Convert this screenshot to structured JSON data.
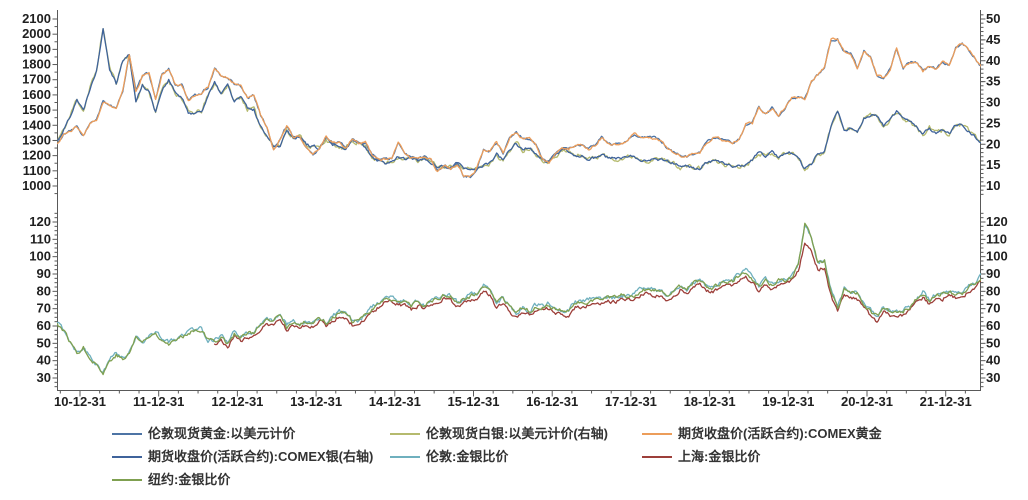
{
  "legend": {
    "items": [
      {
        "label": "伦敦现货黄金:以美元计价",
        "series": "london_gold"
      },
      {
        "label": "伦敦现货白银:以美元计价(右轴)",
        "series": "london_silver"
      },
      {
        "label": "期货收盘价(活跃合约):COMEX黄金",
        "series": "comex_gold"
      },
      {
        "label": "期货收盘价(活跃合约):COMEX银(右轴)",
        "series": "comex_silver"
      },
      {
        "label": "伦敦:金银比价",
        "series": "london_ratio"
      },
      {
        "label": "上海:金银比价",
        "series": "shanghai_ratio"
      },
      {
        "label": "纽约:金银比价",
        "series": "ny_ratio"
      }
    ]
  },
  "chart_data": {
    "type": "line",
    "title": "",
    "grid": false,
    "legend_position": "bottom",
    "x_axis": {
      "labels": [
        "10-12-31",
        "11-12-31",
        "12-12-31",
        "13-12-31",
        "14-12-31",
        "15-12-31",
        "16-12-31",
        "17-12-31",
        "18-12-31",
        "19-12-31",
        "20-12-31",
        "21-12-31"
      ],
      "tick_times": [
        2011,
        2012,
        2013,
        2014,
        2015,
        2016,
        2017,
        2018,
        2019,
        2020,
        2021,
        2022
      ],
      "minor_per_interval": 3,
      "range_years": [
        2010.71,
        2022.45
      ]
    },
    "axes": {
      "top_left": {
        "labels": [
          "2100",
          "2000",
          "1900",
          "1800",
          "1700",
          "1600",
          "1500",
          "1400",
          "1300",
          "1200",
          "1100",
          "1000"
        ],
        "min": 1000,
        "max": 2100,
        "minor_step": 50
      },
      "top_right": {
        "labels": [
          "50",
          "45",
          "40",
          "35",
          "30",
          "25",
          "20",
          "15",
          "10"
        ],
        "min": 10,
        "max": 50,
        "minor_step": 1
      },
      "bottom_left": {
        "labels": [
          "120",
          "110",
          "100",
          "90",
          "80",
          "70",
          "60",
          "50",
          "40",
          "30"
        ],
        "min": 30,
        "max": 120,
        "minor_step": 2.5
      },
      "bottom_right": {
        "labels": [
          "120",
          "110",
          "100",
          "90",
          "80",
          "70",
          "60",
          "50",
          "40",
          "30"
        ],
        "min": 30,
        "max": 120,
        "minor_step": 2.5
      }
    },
    "sampling": {
      "x_start": 2010.71,
      "x_step": 0.0833333,
      "note": "monthly values, daily volatility approximated by jitter amplitude per series"
    },
    "arrays": {
      "gold": [
        1275,
        1340,
        1360,
        1390,
        1332,
        1410,
        1432,
        1557,
        1536,
        1502,
        1628,
        1870,
        1622,
        1722,
        1746,
        1566,
        1737,
        1771,
        1668,
        1664,
        1562,
        1598,
        1614,
        1648,
        1776,
        1720,
        1714,
        1676,
        1661,
        1580,
        1596,
        1469,
        1387,
        1234,
        1312,
        1396,
        1328,
        1324,
        1252,
        1205,
        1244,
        1326,
        1284,
        1291,
        1250,
        1315,
        1282,
        1287,
        1208,
        1173,
        1175,
        1184,
        1283,
        1213,
        1184,
        1184,
        1190,
        1171,
        1096,
        1134,
        1114,
        1142,
        1064,
        1061,
        1116,
        1234,
        1232,
        1290,
        1214,
        1322,
        1351,
        1309,
        1316,
        1272,
        1174,
        1151,
        1212,
        1248,
        1244,
        1266,
        1269,
        1242,
        1268,
        1321,
        1280,
        1271,
        1274,
        1303,
        1344,
        1318,
        1324,
        1316,
        1301,
        1252,
        1223,
        1201,
        1192,
        1214,
        1222,
        1281,
        1321,
        1313,
        1292,
        1284,
        1306,
        1410,
        1414,
        1520,
        1472,
        1511,
        1464,
        1517,
        1584,
        1586,
        1577,
        1687,
        1731,
        1781,
        1963,
        1968,
        1886,
        1879,
        1777,
        1894,
        1848,
        1733,
        1708,
        1768,
        1903,
        1771,
        1814,
        1814,
        1757,
        1784,
        1775,
        1820,
        1798,
        1909,
        1937,
        1897,
        1838,
        1775
      ],
      "silver": [
        20.8,
        23.4,
        26.9,
        30.9,
        28.0,
        33.5,
        37.6,
        48.0,
        38.3,
        34.7,
        40.1,
        41.4,
        30.1,
        34.2,
        32.7,
        27.9,
        33.1,
        35.4,
        32.4,
        31.0,
        27.6,
        27.5,
        27.9,
        31.6,
        34.6,
        32.2,
        34.2,
        30.2,
        31.4,
        28.5,
        28.3,
        24.2,
        22.3,
        19.6,
        19.7,
        23.5,
        21.7,
        21.9,
        20.0,
        19.4,
        19.1,
        21.3,
        19.8,
        19.1,
        18.7,
        21.0,
        20.4,
        19.5,
        17.1,
        16.1,
        15.5,
        15.7,
        17.2,
        16.5,
        16.6,
        16.1,
        16.7,
        15.6,
        14.6,
        14.6,
        14.5,
        15.6,
        14.1,
        13.8,
        14.2,
        14.9,
        15.4,
        17.8,
        16.0,
        18.6,
        20.3,
        18.6,
        19.2,
        17.8,
        16.5,
        15.9,
        17.5,
        18.3,
        18.2,
        17.2,
        17.3,
        16.6,
        16.8,
        17.6,
        16.7,
        16.7,
        16.5,
        16.9,
        17.2,
        16.4,
        16.3,
        16.4,
        16.4,
        16.1,
        15.5,
        14.5,
        14.7,
        14.3,
        14.2,
        15.5,
        16.0,
        15.6,
        15.1,
        14.9,
        14.6,
        15.3,
        16.3,
        18.3,
        17.0,
        18.1,
        17.0,
        17.8,
        18.0,
        16.7,
        14.1,
        15.0,
        17.9,
        18.2,
        24.4,
        28.2,
        23.2,
        23.7,
        22.6,
        26.4,
        27.0,
        26.7,
        24.4,
        25.9,
        28.0,
        26.1,
        25.5,
        24.0,
        22.2,
        23.9,
        22.8,
        23.3,
        22.5,
        24.4,
        24.9,
        23.0,
        21.7,
        20.3
      ],
      "ratio_ny": [
        61.5,
        57.5,
        50.5,
        45,
        47.5,
        42,
        38,
        32.5,
        40,
        43.5,
        40.5,
        44,
        54,
        50.5,
        53.5,
        56,
        52.5,
        50,
        51.5,
        53.5,
        56.5,
        58,
        58,
        52,
        51.5,
        53.5,
        50,
        55.5,
        53,
        55.5,
        56.5,
        60.5,
        62.5,
        63,
        66.5,
        59.5,
        61.5,
        60.5,
        62.5,
        62,
        65,
        62,
        65,
        67.5,
        67,
        62.5,
        63,
        66,
        70.5,
        72.5,
        75.5,
        75.5,
        74.5,
        73.5,
        71.5,
        73.5,
        71.5,
        75,
        75,
        78,
        77,
        73,
        75.5,
        77,
        78.5,
        83,
        80,
        72.5,
        76,
        71,
        66.5,
        70.5,
        68.5,
        71.5,
        71,
        72.5,
        69,
        68.5,
        68.5,
        73.5,
        73.5,
        74.5,
        75.5,
        75,
        76.5,
        76,
        77.5,
        77,
        78,
        80.5,
        81.5,
        80,
        79.5,
        77.5,
        79,
        83,
        81,
        85,
        86,
        82.5,
        82.5,
        84.5,
        85.5,
        86,
        89.5,
        92,
        87,
        83,
        86.5,
        83.5,
        86,
        85.5,
        88,
        95,
        119,
        110,
        96.5,
        98,
        80.5,
        70,
        81,
        79.5,
        78.5,
        72,
        68.5,
        65,
        70,
        68.5,
        68,
        68,
        71,
        75.5,
        79,
        74.5,
        78,
        78,
        80,
        78.5,
        78,
        82.5,
        85,
        88.5
      ],
      "ratio_sh": [
        51,
        52.5,
        49.5,
        54.5,
        52,
        54.5,
        55.5,
        59,
        61,
        61.5,
        65,
        58.5,
        60.5,
        59.5,
        61.5,
        61,
        64,
        61,
        64,
        66.5,
        66,
        61.5,
        62,
        65,
        69.5,
        71.5,
        74.5,
        74.5,
        73.5,
        72.5,
        70.5,
        72.5,
        70.5,
        74,
        74,
        76.5,
        75.5,
        72,
        74.5,
        76,
        77,
        81.5,
        78.5,
        71,
        74.5,
        69.5,
        65,
        69,
        67,
        70,
        69.5,
        71,
        67.5,
        67,
        67,
        72,
        72,
        73,
        74,
        73.5,
        75,
        74.5,
        76,
        75.5,
        76.5,
        79,
        80,
        78.5,
        78,
        76,
        77.5,
        81.5,
        79.5,
        83.5,
        84.5,
        81,
        81,
        83,
        84,
        84.5,
        88,
        90.5,
        85.5,
        81.5,
        85,
        82,
        84.5,
        84,
        86.5,
        93,
        108,
        104,
        93,
        94.5,
        78,
        68.5,
        79,
        77.5,
        76.5,
        70.5,
        67,
        63.5,
        68.5,
        67,
        66.5,
        66.5,
        69.5,
        74,
        77.5,
        73,
        76.5,
        76.5,
        78.5,
        77,
        76.5,
        81,
        83.5,
        87.5
      ]
    },
    "series": [
      {
        "id": "london_silver",
        "name": "伦敦现货白银:以美元计价(右轴)",
        "panel": "top",
        "axis": "right",
        "color": "#b5ba6e",
        "values": "silver",
        "offset": 0,
        "jitter": 0.5,
        "seed": 11,
        "x_start": 2010.71
      },
      {
        "id": "comex_silver",
        "name": "期货收盘价(活跃合约):COMEX银(右轴)",
        "panel": "top",
        "axis": "right",
        "color": "#3f639b",
        "values": "silver",
        "offset": 0,
        "jitter": 0.33,
        "seed": 22,
        "x_start": 2010.71
      },
      {
        "id": "london_gold",
        "name": "伦敦现货黄金:以美元计价",
        "panel": "top",
        "axis": "left",
        "color": "#4d74a5",
        "values": "gold",
        "offset": 0,
        "jitter": 8,
        "seed": 33,
        "x_start": 2010.71
      },
      {
        "id": "comex_gold",
        "name": "期货收盘价(活跃合约):COMEX黄金",
        "panel": "top",
        "axis": "left",
        "color": "#ec9d5a",
        "values": "gold",
        "offset": 0,
        "jitter": 7,
        "seed": 44,
        "x_start": 2010.71
      },
      {
        "id": "london_ratio",
        "name": "伦敦:金银比价",
        "panel": "bottom",
        "axis": "left",
        "color": "#6fb0be",
        "values": "ratio_ny",
        "offset": 0.6,
        "jitter": 1.2,
        "seed": 55,
        "x_start": 2010.71
      },
      {
        "id": "shanghai_ratio",
        "name": "上海:金银比价",
        "panel": "bottom",
        "axis": "left",
        "color": "#9d3f3a",
        "values": "ratio_sh",
        "offset": -0.8,
        "jitter": 1.0,
        "seed": 66,
        "x_start": 2012.71
      },
      {
        "id": "ny_ratio",
        "name": "纽约:金银比价",
        "panel": "bottom",
        "axis": "left",
        "color": "#7fa050",
        "values": "ratio_ny",
        "offset": 0,
        "jitter": 1.1,
        "seed": 77,
        "x_start": 2010.71
      }
    ]
  }
}
